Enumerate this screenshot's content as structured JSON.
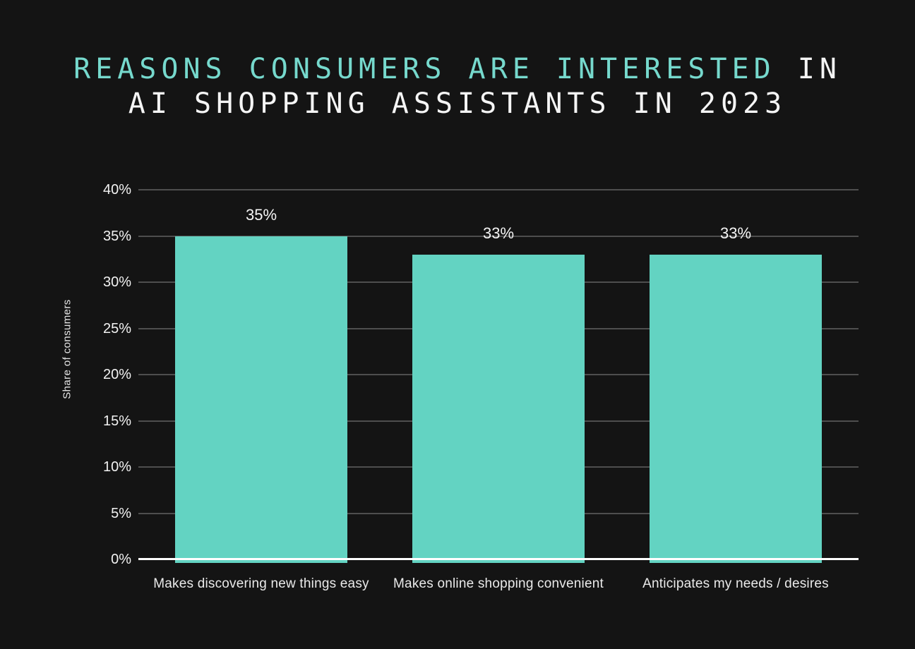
{
  "title": {
    "line1_accent": "REASONS CONSUMERS ARE INTERESTED",
    "line1_rest": " IN",
    "line2": "AI SHOPPING ASSISTANTS IN 2023"
  },
  "chart_data": {
    "type": "bar",
    "title": "REASONS CONSUMERS ARE INTERESTED IN AI SHOPPING ASSISTANTS IN 2023",
    "categories": [
      "Makes discovering new things easy",
      "Makes online shopping convenient",
      "Anticipates my needs / desires"
    ],
    "values": [
      35,
      33,
      33
    ],
    "value_labels": [
      "35%",
      "33%",
      "33%"
    ],
    "ylabel": "Share of consumers",
    "xlabel": "",
    "ylim": [
      0,
      40
    ],
    "ytick_step": 5,
    "yticks": [
      "0%",
      "5%",
      "10%",
      "15%",
      "20%",
      "25%",
      "30%",
      "35%",
      "40%"
    ],
    "grid": true,
    "legend": false,
    "colors": {
      "background": "#141414",
      "bar": "#63d3c2",
      "title_accent": "#76d9cd",
      "title_text": "#f5f5f5",
      "grid": "#4e4e4e",
      "axis_line": "#ffffff",
      "tick_text": "#f2f2f2",
      "category_text": "#eaeaea",
      "value_text": "#f5f5f5"
    }
  }
}
